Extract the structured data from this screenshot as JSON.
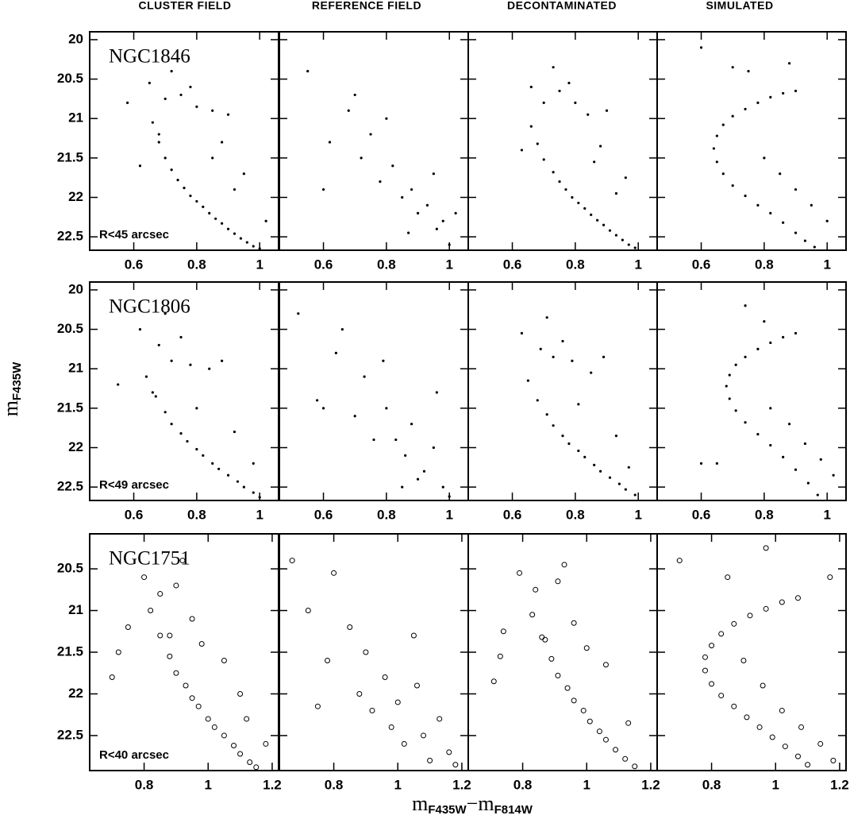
{
  "figure": {
    "column_titles": [
      "CLUSTER FIELD",
      "REFERENCE FIELD",
      "DECONTAMINATED",
      "SIMULATED"
    ],
    "ylabel": {
      "text": "m",
      "subscript": "F435W"
    },
    "xlabel": {
      "text1": "m",
      "subscript1": "F435W",
      "text2": "−m",
      "subscript2": "F814W"
    }
  },
  "chart_data": [
    {
      "type": "scatter",
      "marker": "dot",
      "label": "NGC1846",
      "annotation": "R<45 arcsec",
      "xlim": [
        0.46,
        1.06
      ],
      "ylim": [
        19.9,
        22.67
      ],
      "y_inverted": true,
      "xticks": [
        0.6,
        0.8,
        1
      ],
      "yticks": [
        20,
        20.5,
        21,
        21.5,
        22,
        22.5
      ],
      "show_ytick_labels": true,
      "x": [
        0.66,
        0.68,
        0.7,
        0.72,
        0.74,
        0.76,
        0.78,
        0.8,
        0.82,
        0.84,
        0.86,
        0.88,
        0.9,
        0.92,
        0.94,
        0.96,
        0.98,
        1.0,
        0.7,
        0.75,
        0.8,
        0.85,
        0.9,
        0.65,
        0.72,
        0.78,
        0.88,
        0.95,
        0.58,
        0.62,
        0.85,
        0.92,
        1.02,
        0.68
      ],
      "values": [
        21.05,
        21.3,
        21.5,
        21.65,
        21.78,
        21.88,
        21.98,
        22.05,
        22.12,
        22.2,
        22.27,
        22.33,
        22.4,
        22.46,
        22.52,
        22.57,
        22.62,
        22.65,
        20.75,
        20.7,
        20.85,
        20.9,
        20.95,
        20.55,
        20.4,
        20.6,
        21.3,
        21.7,
        20.8,
        21.6,
        21.5,
        21.9,
        22.3,
        21.2
      ]
    },
    {
      "type": "scatter",
      "marker": "dot",
      "xlim": [
        0.46,
        1.06
      ],
      "ylim": [
        19.9,
        22.67
      ],
      "y_inverted": true,
      "xticks": [
        0.6,
        0.8,
        1
      ],
      "yticks": [
        20,
        20.5,
        21,
        21.5,
        22,
        22.5
      ],
      "show_ytick_labels": false,
      "x": [
        0.55,
        0.62,
        0.68,
        0.72,
        0.75,
        0.78,
        0.82,
        0.85,
        0.88,
        0.9,
        0.93,
        0.96,
        0.98,
        1.0,
        0.7,
        0.8,
        0.95,
        0.6,
        0.87,
        1.02
      ],
      "values": [
        20.4,
        21.3,
        20.9,
        21.5,
        21.2,
        21.8,
        21.6,
        22.0,
        21.9,
        22.2,
        22.1,
        22.4,
        22.3,
        22.6,
        20.7,
        21.0,
        21.7,
        21.9,
        22.45,
        22.2
      ]
    },
    {
      "type": "scatter",
      "marker": "dot",
      "xlim": [
        0.46,
        1.06
      ],
      "ylim": [
        19.9,
        22.67
      ],
      "y_inverted": true,
      "xticks": [
        0.6,
        0.8,
        1
      ],
      "yticks": [
        20,
        20.5,
        21,
        21.5,
        22,
        22.5
      ],
      "show_ytick_labels": false,
      "x": [
        0.66,
        0.68,
        0.7,
        0.73,
        0.75,
        0.77,
        0.79,
        0.81,
        0.83,
        0.85,
        0.87,
        0.89,
        0.91,
        0.93,
        0.95,
        0.97,
        0.99,
        0.7,
        0.75,
        0.8,
        0.84,
        0.9,
        0.66,
        0.73,
        0.78,
        0.88,
        0.96,
        0.63,
        0.86,
        0.93
      ],
      "values": [
        21.1,
        21.32,
        21.52,
        21.68,
        21.8,
        21.9,
        22.0,
        22.07,
        22.14,
        22.22,
        22.29,
        22.35,
        22.42,
        22.48,
        22.54,
        22.6,
        22.64,
        20.8,
        20.65,
        20.8,
        20.95,
        20.9,
        20.6,
        20.35,
        20.55,
        21.35,
        21.75,
        21.4,
        21.55,
        21.95
      ]
    },
    {
      "type": "scatter",
      "marker": "dot",
      "xlim": [
        0.46,
        1.06
      ],
      "ylim": [
        19.9,
        22.67
      ],
      "y_inverted": true,
      "xticks": [
        0.6,
        0.8,
        1
      ],
      "yticks": [
        20,
        20.5,
        21,
        21.5,
        22,
        22.5
      ],
      "show_ytick_labels": false,
      "x": [
        0.9,
        0.86,
        0.82,
        0.78,
        0.74,
        0.7,
        0.67,
        0.65,
        0.64,
        0.65,
        0.67,
        0.7,
        0.74,
        0.78,
        0.82,
        0.86,
        0.9,
        0.93,
        0.96,
        0.8,
        0.85,
        0.9,
        0.95,
        1.0,
        0.75,
        0.7,
        0.6,
        0.88
      ],
      "values": [
        20.65,
        20.68,
        20.73,
        20.8,
        20.88,
        20.97,
        21.08,
        21.22,
        21.38,
        21.55,
        21.7,
        21.85,
        21.98,
        22.1,
        22.2,
        22.32,
        22.45,
        22.55,
        22.63,
        21.5,
        21.7,
        21.9,
        22.1,
        22.3,
        20.4,
        20.35,
        20.1,
        20.3
      ]
    },
    {
      "type": "scatter",
      "marker": "dot",
      "label": "NGC1806",
      "annotation": "R<49 arcsec",
      "xlim": [
        0.46,
        1.06
      ],
      "ylim": [
        19.9,
        22.67
      ],
      "y_inverted": true,
      "xticks": [
        0.6,
        0.8,
        1
      ],
      "yticks": [
        20,
        20.5,
        21,
        21.5,
        22,
        22.5
      ],
      "show_ytick_labels": true,
      "x": [
        0.64,
        0.67,
        0.7,
        0.72,
        0.75,
        0.77,
        0.8,
        0.82,
        0.85,
        0.87,
        0.9,
        0.93,
        0.95,
        0.98,
        1.0,
        0.68,
        0.72,
        0.78,
        0.84,
        0.88,
        0.62,
        0.7,
        0.75,
        0.55,
        0.8,
        0.92,
        0.98,
        0.66
      ],
      "values": [
        21.1,
        21.35,
        21.55,
        21.7,
        21.82,
        21.92,
        22.02,
        22.1,
        22.2,
        22.27,
        22.35,
        22.43,
        22.5,
        22.57,
        22.63,
        20.7,
        20.9,
        20.95,
        21.0,
        20.9,
        20.5,
        20.3,
        20.6,
        21.2,
        21.5,
        21.8,
        22.2,
        21.3
      ]
    },
    {
      "type": "scatter",
      "marker": "dot",
      "xlim": [
        0.46,
        1.06
      ],
      "ylim": [
        19.9,
        22.67
      ],
      "y_inverted": true,
      "xticks": [
        0.6,
        0.8,
        1
      ],
      "yticks": [
        20,
        20.5,
        21,
        21.5,
        22,
        22.5
      ],
      "show_ytick_labels": false,
      "x": [
        0.52,
        0.58,
        0.64,
        0.7,
        0.73,
        0.76,
        0.8,
        0.83,
        0.86,
        0.88,
        0.92,
        0.95,
        0.98,
        1.0,
        0.66,
        0.79,
        0.9,
        0.6,
        0.85,
        0.96
      ],
      "values": [
        20.3,
        21.4,
        20.8,
        21.6,
        21.1,
        21.9,
        21.5,
        21.9,
        22.1,
        21.7,
        22.3,
        22.0,
        22.5,
        22.62,
        20.5,
        20.9,
        22.4,
        21.5,
        22.5,
        21.3
      ]
    },
    {
      "type": "scatter",
      "marker": "dot",
      "xlim": [
        0.46,
        1.06
      ],
      "ylim": [
        19.9,
        22.67
      ],
      "y_inverted": true,
      "xticks": [
        0.6,
        0.8,
        1
      ],
      "yticks": [
        20,
        20.5,
        21,
        21.5,
        22,
        22.5
      ],
      "show_ytick_labels": false,
      "x": [
        0.65,
        0.68,
        0.71,
        0.73,
        0.76,
        0.78,
        0.81,
        0.83,
        0.86,
        0.88,
        0.91,
        0.94,
        0.96,
        0.99,
        0.69,
        0.73,
        0.79,
        0.85,
        0.89,
        0.63,
        0.71,
        0.76,
        0.81,
        0.93,
        0.97
      ],
      "values": [
        21.15,
        21.4,
        21.58,
        21.72,
        21.85,
        21.95,
        22.04,
        22.12,
        22.22,
        22.3,
        22.38,
        22.46,
        22.53,
        22.6,
        20.75,
        20.85,
        20.9,
        21.05,
        20.85,
        20.55,
        20.35,
        20.65,
        21.45,
        21.85,
        22.25
      ]
    },
    {
      "type": "scatter",
      "marker": "dot",
      "xlim": [
        0.46,
        1.06
      ],
      "ylim": [
        19.9,
        22.67
      ],
      "y_inverted": true,
      "xticks": [
        0.6,
        0.8,
        1
      ],
      "yticks": [
        20,
        20.5,
        21,
        21.5,
        22,
        22.5
      ],
      "show_ytick_labels": false,
      "x": [
        0.9,
        0.86,
        0.82,
        0.78,
        0.74,
        0.71,
        0.69,
        0.68,
        0.69,
        0.71,
        0.74,
        0.78,
        0.82,
        0.86,
        0.9,
        0.94,
        0.97,
        0.82,
        0.88,
        0.93,
        0.98,
        1.02,
        0.8,
        0.6,
        0.74,
        0.65
      ],
      "values": [
        20.55,
        20.6,
        20.67,
        20.75,
        20.85,
        20.95,
        21.08,
        21.22,
        21.38,
        21.53,
        21.68,
        21.83,
        21.97,
        22.12,
        22.28,
        22.45,
        22.6,
        21.5,
        21.7,
        21.95,
        22.15,
        22.35,
        20.4,
        22.2,
        20.2,
        22.2
      ]
    },
    {
      "type": "scatter",
      "marker": "circle",
      "label": "NGC1751",
      "annotation": "R<40 arcsec",
      "xlim": [
        0.63,
        1.22
      ],
      "ylim": [
        20.08,
        22.92
      ],
      "y_inverted": true,
      "xticks": [
        0.8,
        1,
        1.2
      ],
      "yticks": [
        20.5,
        21,
        21.5,
        22,
        22.5
      ],
      "show_ytick_labels": true,
      "x": [
        0.82,
        0.85,
        0.88,
        0.9,
        0.93,
        0.95,
        0.97,
        1.0,
        1.02,
        1.05,
        1.08,
        1.1,
        1.13,
        1.15,
        0.8,
        0.85,
        0.9,
        0.95,
        0.75,
        0.72,
        0.88,
        1.05,
        1.12,
        1.18,
        0.7,
        0.92,
        0.98,
        1.1
      ],
      "values": [
        21.0,
        21.3,
        21.55,
        21.75,
        21.9,
        22.05,
        22.15,
        22.3,
        22.4,
        22.5,
        22.62,
        22.72,
        22.82,
        22.88,
        20.6,
        20.8,
        20.7,
        21.1,
        21.2,
        21.5,
        21.3,
        21.6,
        22.3,
        22.6,
        21.8,
        20.4,
        21.4,
        22.0
      ]
    },
    {
      "type": "scatter",
      "marker": "circle",
      "xlim": [
        0.63,
        1.22
      ],
      "ylim": [
        20.08,
        22.92
      ],
      "y_inverted": true,
      "xticks": [
        0.8,
        1,
        1.2
      ],
      "yticks": [
        20.5,
        21,
        21.5,
        22,
        22.5
      ],
      "show_ytick_labels": false,
      "x": [
        0.67,
        0.72,
        0.78,
        0.85,
        0.88,
        0.92,
        0.96,
        0.98,
        1.02,
        1.05,
        1.08,
        1.1,
        1.13,
        1.16,
        0.8,
        0.9,
        1.0,
        0.75,
        1.18,
        1.06
      ],
      "values": [
        20.4,
        21.0,
        21.6,
        21.2,
        22.0,
        22.2,
        21.8,
        22.4,
        22.6,
        21.3,
        22.5,
        22.8,
        22.3,
        22.7,
        20.55,
        21.5,
        22.1,
        22.15,
        22.85,
        21.9
      ]
    },
    {
      "type": "scatter",
      "marker": "circle",
      "xlim": [
        0.63,
        1.22
      ],
      "ylim": [
        20.08,
        22.92
      ],
      "y_inverted": true,
      "xticks": [
        0.8,
        1,
        1.2
      ],
      "yticks": [
        20.5,
        21,
        21.5,
        22,
        22.5
      ],
      "show_ytick_labels": false,
      "x": [
        0.83,
        0.86,
        0.89,
        0.91,
        0.94,
        0.96,
        0.99,
        1.01,
        1.04,
        1.06,
        1.09,
        1.12,
        1.15,
        0.79,
        0.84,
        0.91,
        0.96,
        0.74,
        0.73,
        0.87,
        1.06,
        1.13,
        0.71,
        0.93,
        1.0
      ],
      "values": [
        21.05,
        21.32,
        21.58,
        21.78,
        21.93,
        22.08,
        22.2,
        22.33,
        22.45,
        22.55,
        22.67,
        22.78,
        22.87,
        20.55,
        20.75,
        20.65,
        21.15,
        21.25,
        21.55,
        21.35,
        21.65,
        22.35,
        21.85,
        20.45,
        21.45
      ]
    },
    {
      "type": "scatter",
      "marker": "circle",
      "xlim": [
        0.63,
        1.22
      ],
      "ylim": [
        20.08,
        22.92
      ],
      "y_inverted": true,
      "xticks": [
        0.8,
        1,
        1.2
      ],
      "yticks": [
        20.5,
        21,
        21.5,
        22,
        22.5
      ],
      "show_ytick_labels": false,
      "x": [
        1.07,
        1.02,
        0.97,
        0.92,
        0.87,
        0.83,
        0.8,
        0.78,
        0.78,
        0.8,
        0.83,
        0.87,
        0.91,
        0.95,
        0.99,
        1.03,
        1.07,
        1.1,
        0.9,
        0.96,
        1.02,
        1.08,
        1.14,
        1.18,
        0.85,
        0.97,
        0.7,
        1.17
      ],
      "values": [
        20.85,
        20.9,
        20.98,
        21.06,
        21.16,
        21.28,
        21.42,
        21.56,
        21.72,
        21.88,
        22.02,
        22.15,
        22.28,
        22.4,
        22.52,
        22.63,
        22.75,
        22.85,
        21.6,
        21.9,
        22.2,
        22.4,
        22.6,
        22.8,
        20.6,
        20.25,
        20.4,
        20.6
      ]
    }
  ]
}
